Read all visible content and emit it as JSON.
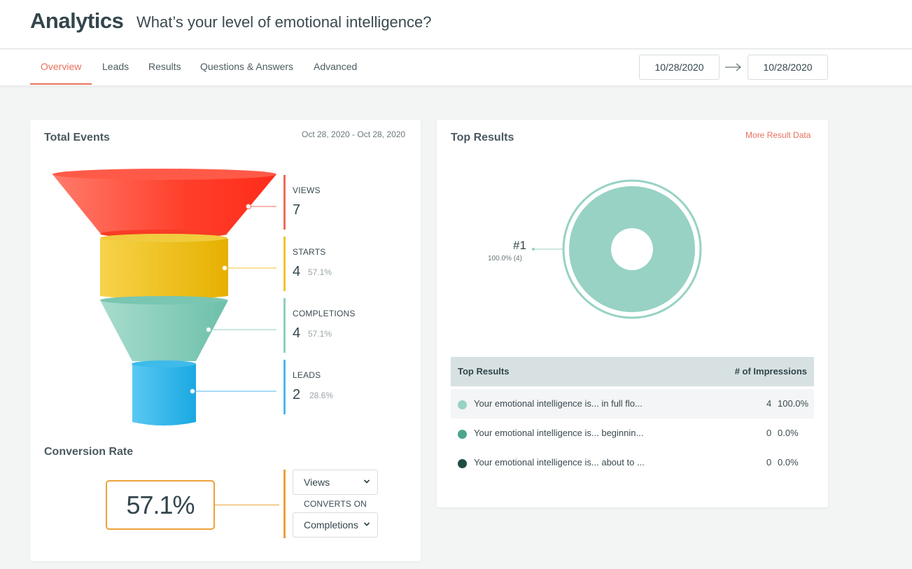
{
  "header": {
    "title": "Analytics",
    "quiz_title": "What’s your level of emotional intelligence?"
  },
  "tabs": [
    {
      "label": "Overview",
      "active": true
    },
    {
      "label": "Leads",
      "active": false
    },
    {
      "label": "Results",
      "active": false
    },
    {
      "label": "Questions & Answers",
      "active": false
    },
    {
      "label": "Advanced",
      "active": false
    }
  ],
  "date_range": {
    "start": "10/28/2020",
    "end": "10/28/2020",
    "arrow_icon": "arrow-right-icon"
  },
  "total_events": {
    "title": "Total Events",
    "range_text": "Oct 28, 2020 - Oct 28, 2020",
    "stages": [
      {
        "label": "VIEWS",
        "value": "7",
        "pct": "",
        "color": "#ef6b5b"
      },
      {
        "label": "STARTS",
        "value": "4",
        "pct": "57.1%",
        "color": "#f1c232"
      },
      {
        "label": "COMPLETIONS",
        "value": "4",
        "pct": "57.1%",
        "color": "#8fcfbf"
      },
      {
        "label": "LEADS",
        "value": "2",
        "pct": "28.6%",
        "color": "#4fb8e8"
      }
    ]
  },
  "conversion": {
    "title": "Conversion Rate",
    "rate": "57.1%",
    "from_select": "Views",
    "converts_on_label": "CONVERTS ON",
    "to_select": "Completions",
    "accent": "#eba23c"
  },
  "top_results": {
    "title": "Top Results",
    "more_link": "More Result Data",
    "donut": {
      "label": "#1",
      "sublabel": "100.0% (4)",
      "color": "#97d2c4"
    },
    "table": {
      "col_result": "Top Results",
      "col_impressions": "# of Impressions",
      "rows": [
        {
          "text": "Your emotional intelligence is... in full flo...",
          "count": "4",
          "pct": "100.0%",
          "color": "#97d2c4"
        },
        {
          "text": "Your emotional intelligence is... beginnin...",
          "count": "0",
          "pct": "0.0%",
          "color": "#4aa58c"
        },
        {
          "text": "Your emotional intelligence is... about to ...",
          "count": "0",
          "pct": "0.0%",
          "color": "#1f4d43"
        }
      ]
    }
  }
}
